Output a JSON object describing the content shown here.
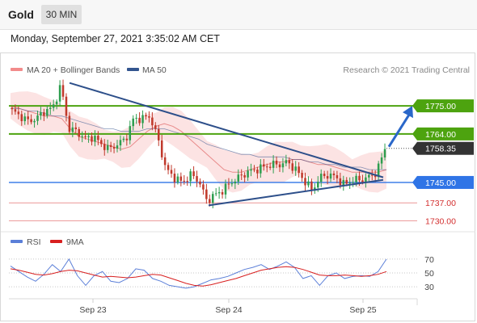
{
  "header": {
    "symbol": "Gold",
    "interval": "30 MIN",
    "datetime": "Monday, September 27, 2021 3:35:02 AM CET"
  },
  "legend": {
    "ma20_bb": "MA 20 + Bollinger Bands",
    "ma50": "MA 50",
    "credit": "Research © 2021 Trading Central",
    "rsi": "RSI",
    "rsi_ma": "9MA"
  },
  "colors": {
    "bull_candle": "#2e9e4f",
    "bear_candle": "#c0392b",
    "resistance": "#4da30f",
    "pivot": "#2f74e6",
    "support": "#e57373",
    "trendline": "#2d4f8a",
    "bollinger_fill": "#fbd9d9",
    "ma20": "#e88a8a",
    "ma50": "#33558f",
    "rsi": "#5b7fd8",
    "rsi_ma": "#d81f1f"
  },
  "chart_data": [
    {
      "type": "line",
      "title": "Gold",
      "subtitle": "30 MIN",
      "x_ticks": [
        "Sep 23",
        "Sep 24",
        "Sep 25"
      ],
      "y_range": [
        1726,
        1788
      ],
      "levels": [
        {
          "value": 1775.0,
          "label": "1775.00",
          "role": "resistance"
        },
        {
          "value": 1764.0,
          "label": "1764.00",
          "role": "resistance"
        },
        {
          "value": 1758.35,
          "label": "1758.35",
          "role": "last"
        },
        {
          "value": 1745.0,
          "label": "1745.00",
          "role": "pivot"
        },
        {
          "value": 1737.0,
          "label": "1737.00",
          "role": "support"
        },
        {
          "value": 1730.0,
          "label": "1730.00",
          "role": "support"
        }
      ],
      "series": [
        {
          "name": "MA 20 + Bollinger Bands",
          "values": [
            1775,
            1774,
            1773,
            1772,
            1771,
            1771,
            1770,
            1766,
            1763,
            1762,
            1761,
            1760,
            1759,
            1758,
            1759,
            1762,
            1765,
            1767,
            1768,
            1767,
            1765,
            1762,
            1759,
            1756,
            1753,
            1750,
            1749,
            1749,
            1750,
            1751,
            1752,
            1753,
            1753,
            1754,
            1754,
            1753,
            1752,
            1752,
            1751,
            1750,
            1749,
            1749,
            1749,
            1749,
            1750
          ]
        },
        {
          "name": "MA 50",
          "values": [
            1774,
            1774,
            1773,
            1773,
            1772,
            1771,
            1771,
            1770,
            1769,
            1768,
            1767,
            1766,
            1766,
            1765,
            1765,
            1765,
            1766,
            1766,
            1766,
            1765,
            1764,
            1763,
            1762,
            1760,
            1759,
            1758,
            1757,
            1756,
            1756,
            1755,
            1755,
            1755,
            1755,
            1754,
            1754,
            1753,
            1753,
            1752,
            1752,
            1751,
            1751,
            1751,
            1750,
            1750,
            1750
          ]
        },
        {
          "name": "Price",
          "values": [
            1773,
            1771,
            1769,
            1770,
            1773,
            1774,
            1783,
            1766,
            1765,
            1762,
            1763,
            1760,
            1758,
            1760,
            1762,
            1770,
            1770,
            1771,
            1762,
            1750,
            1747,
            1745,
            1748,
            1746,
            1738,
            1740,
            1742,
            1745,
            1747,
            1749,
            1750,
            1751,
            1752,
            1752,
            1753,
            1750,
            1746,
            1742,
            1747,
            1748,
            1747,
            1744,
            1746,
            1746,
            1747,
            1749,
            1758.35
          ]
        }
      ],
      "trendlines": [
        {
          "from": {
            "x": "Sep 22",
            "y": 1784
          },
          "to": {
            "x": "Sep 25",
            "y": 1747
          }
        },
        {
          "from": {
            "x": "Sep 24",
            "y": 1736
          },
          "to": {
            "x": "Sep 25",
            "y": 1746
          }
        }
      ],
      "forecast_arrow": {
        "from": 1759,
        "to": 1775
      }
    },
    {
      "type": "line",
      "title": "RSI",
      "y_ticks": [
        70,
        50,
        30
      ],
      "y_range": [
        15,
        85
      ],
      "series": [
        {
          "name": "RSI",
          "values": [
            60,
            52,
            44,
            38,
            48,
            62,
            52,
            70,
            46,
            32,
            46,
            52,
            38,
            36,
            42,
            56,
            54,
            42,
            38,
            32,
            30,
            28,
            30,
            35,
            40,
            42,
            45,
            50,
            55,
            58,
            62,
            55,
            60,
            66,
            58,
            42,
            46,
            32,
            46,
            50,
            42,
            45,
            46,
            45,
            52,
            70
          ]
        },
        {
          "name": "9MA",
          "values": [
            56,
            54,
            51,
            48,
            47,
            49,
            52,
            54,
            53,
            50,
            47,
            44,
            45,
            44,
            43,
            44,
            46,
            48,
            47,
            43,
            39,
            35,
            32,
            31,
            33,
            36,
            39,
            42,
            46,
            50,
            54,
            56,
            58,
            59,
            58,
            55,
            51,
            47,
            46,
            46,
            47,
            46,
            45,
            46,
            48,
            52
          ]
        }
      ]
    }
  ]
}
